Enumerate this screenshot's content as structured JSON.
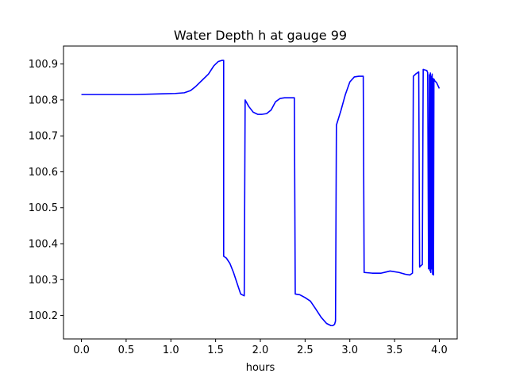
{
  "chart_data": {
    "type": "line",
    "title": "Water Depth h at gauge 99",
    "xlabel": "hours",
    "ylabel": "",
    "xlim": [
      -0.2,
      4.2
    ],
    "ylim": [
      100.135,
      100.95
    ],
    "grid": false,
    "x_ticks": [
      {
        "value": 0.0,
        "label": "0.0"
      },
      {
        "value": 0.5,
        "label": "0.5"
      },
      {
        "value": 1.0,
        "label": "1.0"
      },
      {
        "value": 1.5,
        "label": "1.5"
      },
      {
        "value": 2.0,
        "label": "2.0"
      },
      {
        "value": 2.5,
        "label": "2.5"
      },
      {
        "value": 3.0,
        "label": "3.0"
      },
      {
        "value": 3.5,
        "label": "3.5"
      },
      {
        "value": 4.0,
        "label": "4.0"
      }
    ],
    "y_ticks": [
      {
        "value": 100.2,
        "label": "100.2"
      },
      {
        "value": 100.3,
        "label": "100.3"
      },
      {
        "value": 100.4,
        "label": "100.4"
      },
      {
        "value": 100.5,
        "label": "100.5"
      },
      {
        "value": 100.6,
        "label": "100.6"
      },
      {
        "value": 100.7,
        "label": "100.7"
      },
      {
        "value": 100.8,
        "label": "100.8"
      },
      {
        "value": 100.9,
        "label": "100.9"
      }
    ],
    "series": [
      {
        "color": "#0000ff",
        "x": [
          0.0,
          0.3,
          0.6,
          0.9,
          1.05,
          1.15,
          1.22,
          1.28,
          1.35,
          1.42,
          1.48,
          1.53,
          1.57,
          1.59,
          1.59,
          1.62,
          1.66,
          1.7,
          1.74,
          1.78,
          1.82,
          1.83,
          1.87,
          1.92,
          1.97,
          2.02,
          2.07,
          2.12,
          2.17,
          2.22,
          2.27,
          2.32,
          2.38,
          2.39,
          2.44,
          2.5,
          2.56,
          2.62,
          2.68,
          2.74,
          2.79,
          2.81,
          2.83,
          2.84,
          2.85,
          2.9,
          2.95,
          3.0,
          3.05,
          3.1,
          3.15,
          3.16,
          3.25,
          3.35,
          3.4,
          3.45,
          3.55,
          3.62,
          3.67,
          3.7,
          3.71,
          3.74,
          3.77,
          3.78,
          3.79,
          3.81,
          3.82,
          3.83,
          3.86,
          3.87,
          3.88,
          3.89,
          3.895,
          3.9,
          3.905,
          3.91,
          3.915,
          3.92,
          3.925,
          3.93,
          3.935,
          3.94,
          3.95,
          3.97,
          4.0
        ],
        "y": [
          100.815,
          100.815,
          100.815,
          100.817,
          100.818,
          100.82,
          100.826,
          100.838,
          100.855,
          100.872,
          100.895,
          100.907,
          100.91,
          100.91,
          100.365,
          100.36,
          100.345,
          100.32,
          100.29,
          100.26,
          100.255,
          100.8,
          100.782,
          100.766,
          100.76,
          100.76,
          100.762,
          100.772,
          100.795,
          100.804,
          100.806,
          100.806,
          100.806,
          100.26,
          100.258,
          100.25,
          100.24,
          100.218,
          100.195,
          100.178,
          100.172,
          100.172,
          100.176,
          100.185,
          100.73,
          100.77,
          100.815,
          100.85,
          100.864,
          100.866,
          100.866,
          100.32,
          100.318,
          100.318,
          100.321,
          100.324,
          100.32,
          100.315,
          100.313,
          100.318,
          100.866,
          100.873,
          100.878,
          100.335,
          100.338,
          100.342,
          100.885,
          100.884,
          100.882,
          100.876,
          100.33,
          100.87,
          100.325,
          100.875,
          100.32,
          100.866,
          100.33,
          100.872,
          100.315,
          100.86,
          100.313,
          100.858,
          100.853,
          100.848,
          100.832
        ]
      }
    ]
  }
}
